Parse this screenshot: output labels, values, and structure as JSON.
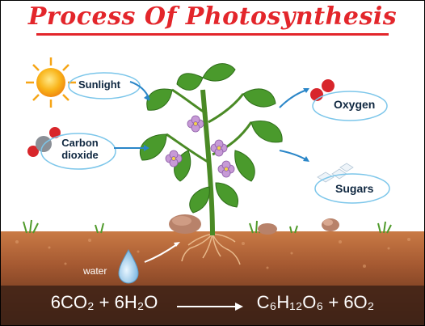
{
  "title": "Process Of Photosynthesis",
  "labels": {
    "sunlight": "Sunlight",
    "carbon_line1": "Carbon",
    "carbon_line2": "dioxide",
    "oxygen": "Oxygen",
    "sugars": "Sugars",
    "water": "water"
  },
  "equation": {
    "left": "6CO₂ + 6H₂O",
    "right": "C₆H₁₂O₆ + 6O₂"
  },
  "colors": {
    "title": "#e3262b",
    "label_text": "#0f2740",
    "arrow": "#2a86c8",
    "oxygen": "#d8262b",
    "carbon": "#8a8f96",
    "soil_top": "#c97a45",
    "soil_bottom": "#4a2a1b",
    "leaf": "#4a9a2c",
    "flower": "#c79ad6"
  }
}
